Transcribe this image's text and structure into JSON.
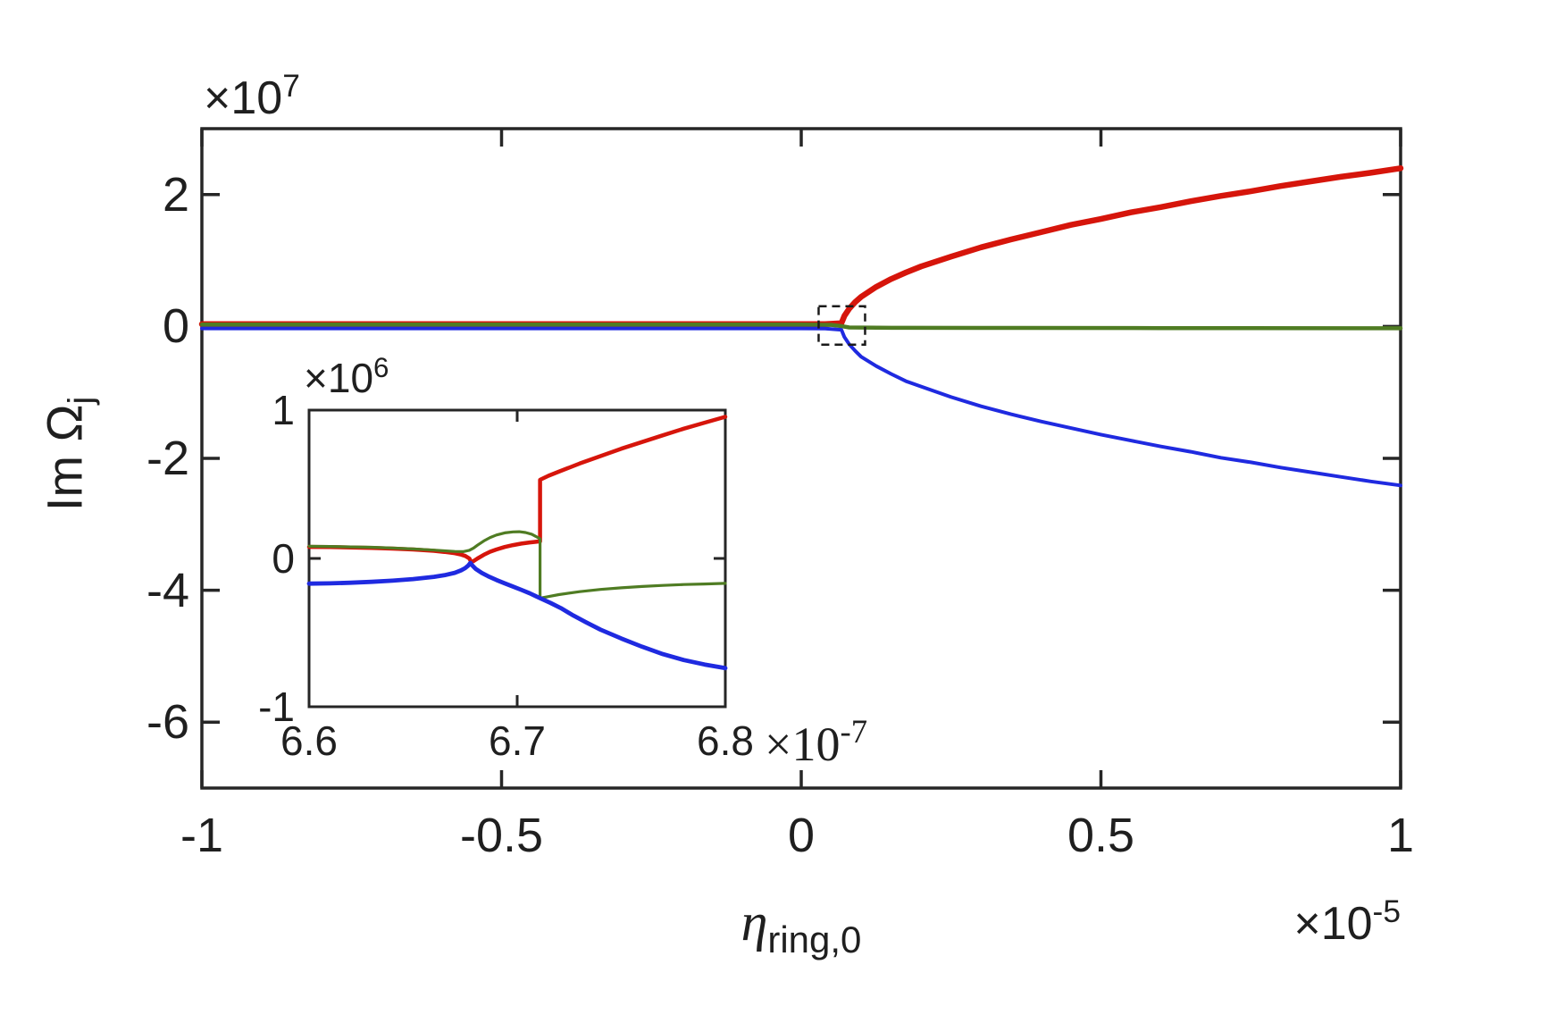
{
  "colors": {
    "background": "#ffffff",
    "axis": "#262626",
    "text": "#1f1f1f",
    "series_red": "#d6150b",
    "series_green": "#4f7c23",
    "series_blue": "#1f2ae0",
    "zoom_box": "#1a1a1a"
  },
  "chart_data": [
    {
      "id": "main",
      "type": "line",
      "title": "",
      "xlabel_symbol": "η",
      "xlabel_sub": "ring,0",
      "ylabel_text": "Im Ω",
      "ylabel_sub": "j",
      "y_multiplier": {
        "base": "×10",
        "exp": "7"
      },
      "x_multiplier": {
        "base": "×10",
        "exp": "-5"
      },
      "x_unit": "1e-5",
      "y_unit": "1e7",
      "xlim": [
        -1,
        1
      ],
      "ylim": [
        -7,
        3
      ],
      "grid": false,
      "legend": "none",
      "xticks": [
        {
          "v": -1,
          "label": "-1"
        },
        {
          "v": -0.5,
          "label": "-0.5"
        },
        {
          "v": 0,
          "label": "0"
        },
        {
          "v": 0.5,
          "label": "0.5"
        },
        {
          "v": 1,
          "label": "1"
        }
      ],
      "yticks": [
        {
          "v": 2,
          "label": "2"
        },
        {
          "v": 0,
          "label": "0"
        },
        {
          "v": -2,
          "label": "-2"
        },
        {
          "v": -4,
          "label": "-4"
        },
        {
          "v": -6,
          "label": "-6"
        }
      ],
      "zoom_box": {
        "x": [
          0.029,
          0.1065
        ],
        "y": [
          -0.275,
          0.307
        ],
        "style": "dashed"
      },
      "series": [
        {
          "name": "branch-1-red",
          "color": "#d6150b",
          "points": [
            [
              -1,
              0.035
            ],
            [
              -0.6,
              0.035
            ],
            [
              -0.2,
              0.035
            ],
            [
              0,
              0.035
            ],
            [
              0.04,
              0.036
            ],
            [
              0.067,
              0.05
            ],
            [
              0.072,
              0.16
            ],
            [
              0.08,
              0.27
            ],
            [
              0.09,
              0.37
            ],
            [
              0.1,
              0.45
            ],
            [
              0.125,
              0.6
            ],
            [
              0.15,
              0.72
            ],
            [
              0.175,
              0.82
            ],
            [
              0.2,
              0.91
            ],
            [
              0.25,
              1.06
            ],
            [
              0.3,
              1.2
            ],
            [
              0.35,
              1.32
            ],
            [
              0.4,
              1.43
            ],
            [
              0.45,
              1.54
            ],
            [
              0.5,
              1.63
            ],
            [
              0.55,
              1.73
            ],
            [
              0.6,
              1.81
            ],
            [
              0.65,
              1.9
            ],
            [
              0.7,
              1.98
            ],
            [
              0.75,
              2.05
            ],
            [
              0.8,
              2.13
            ],
            [
              0.85,
              2.2
            ],
            [
              0.9,
              2.27
            ],
            [
              0.95,
              2.33
            ],
            [
              1,
              2.4
            ]
          ]
        },
        {
          "name": "branch-2-green",
          "color": "#4f7c23",
          "points": [
            [
              -1,
              0.03
            ],
            [
              -0.5,
              0.03
            ],
            [
              0,
              0.03
            ],
            [
              0.05,
              0.025
            ],
            [
              0.067,
              0.005
            ],
            [
              0.08,
              -0.015
            ],
            [
              0.15,
              -0.02
            ],
            [
              0.3,
              -0.022
            ],
            [
              0.6,
              -0.025
            ],
            [
              1,
              -0.027
            ]
          ]
        },
        {
          "name": "branch-3-blue",
          "color": "#1f2ae0",
          "points": [
            [
              -1,
              -0.03
            ],
            [
              -0.6,
              -0.03
            ],
            [
              -0.2,
              -0.03
            ],
            [
              0,
              -0.03
            ],
            [
              0.04,
              -0.032
            ],
            [
              0.067,
              -0.05
            ],
            [
              0.072,
              -0.16
            ],
            [
              0.08,
              -0.27
            ],
            [
              0.09,
              -0.37
            ],
            [
              0.1,
              -0.46
            ],
            [
              0.125,
              -0.6
            ],
            [
              0.15,
              -0.72
            ],
            [
              0.175,
              -0.83
            ],
            [
              0.2,
              -0.91
            ],
            [
              0.25,
              -1.07
            ],
            [
              0.3,
              -1.21
            ],
            [
              0.35,
              -1.33
            ],
            [
              0.4,
              -1.44
            ],
            [
              0.45,
              -1.54
            ],
            [
              0.5,
              -1.64
            ],
            [
              0.55,
              -1.73
            ],
            [
              0.6,
              -1.82
            ],
            [
              0.65,
              -1.9
            ],
            [
              0.7,
              -1.99
            ],
            [
              0.75,
              -2.06
            ],
            [
              0.8,
              -2.14
            ],
            [
              0.85,
              -2.21
            ],
            [
              0.9,
              -2.28
            ],
            [
              0.95,
              -2.35
            ],
            [
              1,
              -2.41
            ]
          ]
        }
      ]
    },
    {
      "id": "inset",
      "type": "line",
      "title": "",
      "y_multiplier": {
        "base": "×10",
        "exp": "6"
      },
      "x_multiplier": {
        "base": "×10",
        "exp": "-7"
      },
      "x_unit": "1e-7",
      "y_unit": "1e6",
      "xlim": [
        6.6,
        6.8
      ],
      "ylim": [
        -1,
        1
      ],
      "grid": false,
      "legend": "none",
      "xticks": [
        {
          "v": 6.6,
          "label": "6.6"
        },
        {
          "v": 6.7,
          "label": "6.7"
        },
        {
          "v": 6.8,
          "label": "6.8"
        }
      ],
      "yticks": [
        {
          "v": 1,
          "label": "1"
        },
        {
          "v": 0,
          "label": "0"
        },
        {
          "v": -1,
          "label": "-1"
        }
      ],
      "series": [
        {
          "name": "branch-1-red",
          "color": "#d6150b",
          "points": [
            [
              6.6,
              0.078
            ],
            [
              6.61,
              0.077
            ],
            [
              6.62,
              0.074
            ],
            [
              6.63,
              0.071
            ],
            [
              6.64,
              0.066
            ],
            [
              6.65,
              0.06
            ],
            [
              6.66,
              0.051
            ],
            [
              6.665,
              0.044
            ],
            [
              6.67,
              0.035
            ],
            [
              6.673,
              0.026
            ],
            [
              6.675,
              0.017
            ],
            [
              6.677,
              0.0
            ],
            [
              6.678,
              -0.025
            ],
            [
              6.679,
              -0.018
            ],
            [
              6.681,
              0.0
            ],
            [
              6.684,
              0.025
            ],
            [
              6.687,
              0.045
            ],
            [
              6.69,
              0.06
            ],
            [
              6.694,
              0.077
            ],
            [
              6.698,
              0.09
            ],
            [
              6.702,
              0.1
            ],
            [
              6.706,
              0.108
            ],
            [
              6.709,
              0.112
            ],
            [
              6.711,
              0.115
            ],
            [
              6.711,
              0.53
            ],
            [
              6.715,
              0.557
            ],
            [
              6.72,
              0.585
            ],
            [
              6.73,
              0.64
            ],
            [
              6.74,
              0.69
            ],
            [
              6.75,
              0.74
            ],
            [
              6.76,
              0.785
            ],
            [
              6.77,
              0.83
            ],
            [
              6.78,
              0.875
            ],
            [
              6.79,
              0.915
            ],
            [
              6.8,
              0.955
            ]
          ]
        },
        {
          "name": "branch-2-green",
          "color": "#4f7c23",
          "points": [
            [
              6.6,
              0.082
            ],
            [
              6.61,
              0.081
            ],
            [
              6.62,
              0.078
            ],
            [
              6.63,
              0.075
            ],
            [
              6.64,
              0.07
            ],
            [
              6.65,
              0.064
            ],
            [
              6.66,
              0.056
            ],
            [
              6.665,
              0.051
            ],
            [
              6.67,
              0.047
            ],
            [
              6.674,
              0.046
            ],
            [
              6.677,
              0.055
            ],
            [
              6.679,
              0.07
            ],
            [
              6.681,
              0.09
            ],
            [
              6.684,
              0.118
            ],
            [
              6.687,
              0.141
            ],
            [
              6.69,
              0.158
            ],
            [
              6.694,
              0.172
            ],
            [
              6.698,
              0.179
            ],
            [
              6.701,
              0.18
            ],
            [
              6.704,
              0.175
            ],
            [
              6.707,
              0.163
            ],
            [
              6.709,
              0.148
            ],
            [
              6.711,
              0.132
            ],
            [
              6.711,
              -0.268
            ],
            [
              6.715,
              -0.257
            ],
            [
              6.72,
              -0.244
            ],
            [
              6.73,
              -0.224
            ],
            [
              6.74,
              -0.209
            ],
            [
              6.75,
              -0.198
            ],
            [
              6.76,
              -0.189
            ],
            [
              6.77,
              -0.182
            ],
            [
              6.78,
              -0.176
            ],
            [
              6.79,
              -0.172
            ],
            [
              6.8,
              -0.168
            ]
          ]
        },
        {
          "name": "branch-3-blue",
          "color": "#1f2ae0",
          "points": [
            [
              6.6,
              -0.17
            ],
            [
              6.61,
              -0.168
            ],
            [
              6.62,
              -0.164
            ],
            [
              6.63,
              -0.158
            ],
            [
              6.64,
              -0.15
            ],
            [
              6.65,
              -0.139
            ],
            [
              6.66,
              -0.124
            ],
            [
              6.665,
              -0.113
            ],
            [
              6.67,
              -0.097
            ],
            [
              6.673,
              -0.081
            ],
            [
              6.675,
              -0.065
            ],
            [
              6.6765,
              -0.048
            ],
            [
              6.6775,
              -0.03
            ],
            [
              6.6785,
              -0.048
            ],
            [
              6.68,
              -0.07
            ],
            [
              6.683,
              -0.098
            ],
            [
              6.686,
              -0.12
            ],
            [
              6.69,
              -0.145
            ],
            [
              6.694,
              -0.168
            ],
            [
              6.698,
              -0.19
            ],
            [
              6.702,
              -0.212
            ],
            [
              6.706,
              -0.235
            ],
            [
              6.709,
              -0.255
            ],
            [
              6.711,
              -0.268
            ],
            [
              6.716,
              -0.3
            ],
            [
              6.721,
              -0.335
            ],
            [
              6.727,
              -0.385
            ],
            [
              6.733,
              -0.43
            ],
            [
              6.74,
              -0.48
            ],
            [
              6.75,
              -0.54
            ],
            [
              6.76,
              -0.595
            ],
            [
              6.77,
              -0.645
            ],
            [
              6.78,
              -0.685
            ],
            [
              6.79,
              -0.715
            ],
            [
              6.8,
              -0.74
            ]
          ]
        }
      ]
    }
  ]
}
